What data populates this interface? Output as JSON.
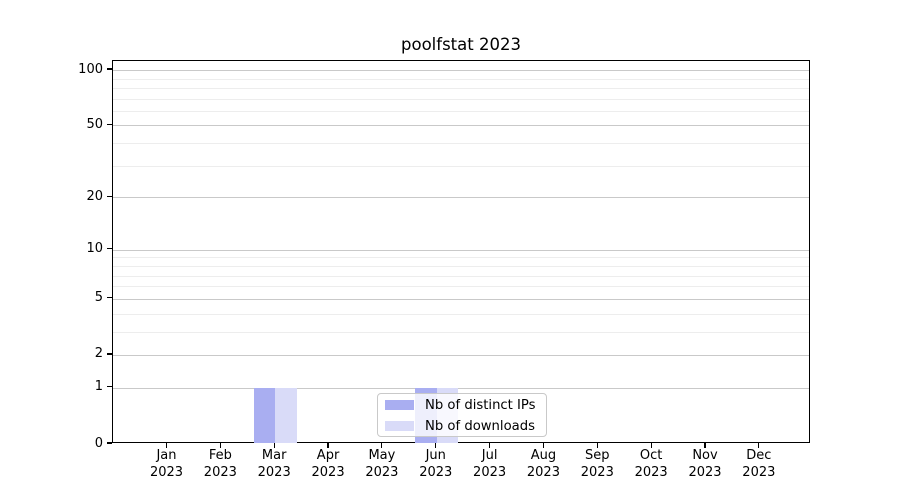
{
  "chart_data": {
    "type": "bar",
    "title": "poolfstat 2023",
    "categories": [
      "Jan 2023",
      "Feb 2023",
      "Mar 2023",
      "Apr 2023",
      "May 2023",
      "Jun 2023",
      "Jul 2023",
      "Aug 2023",
      "Sep 2023",
      "Oct 2023",
      "Nov 2023",
      "Dec 2023"
    ],
    "series": [
      {
        "name": "Nb of distinct IPs",
        "color": "#a9aef1",
        "values": [
          0,
          0,
          1,
          0,
          0,
          1,
          0,
          0,
          0,
          0,
          0,
          0
        ]
      },
      {
        "name": "Nb of downloads",
        "color": "#d9dbf8",
        "values": [
          0,
          0,
          1,
          0,
          0,
          1,
          0,
          0,
          0,
          0,
          0,
          0
        ]
      }
    ],
    "y_axis": {
      "scale": "log1p",
      "ylim": [
        0,
        112
      ],
      "ticks_major": [
        0,
        1,
        2,
        5,
        10,
        20,
        50,
        100
      ],
      "ticks_minor": [
        3,
        4,
        6,
        7,
        8,
        9,
        30,
        40,
        60,
        70,
        80,
        90
      ]
    },
    "legend": {
      "position": "lower-center",
      "labels": [
        "Nb of distinct IPs",
        "Nb of downloads"
      ]
    },
    "grid": {
      "major_color": "#c9c9c9",
      "minor_color": "#ededed"
    },
    "colors": {
      "spine": "#000000",
      "text": "#000000",
      "background": "#ffffff"
    }
  }
}
